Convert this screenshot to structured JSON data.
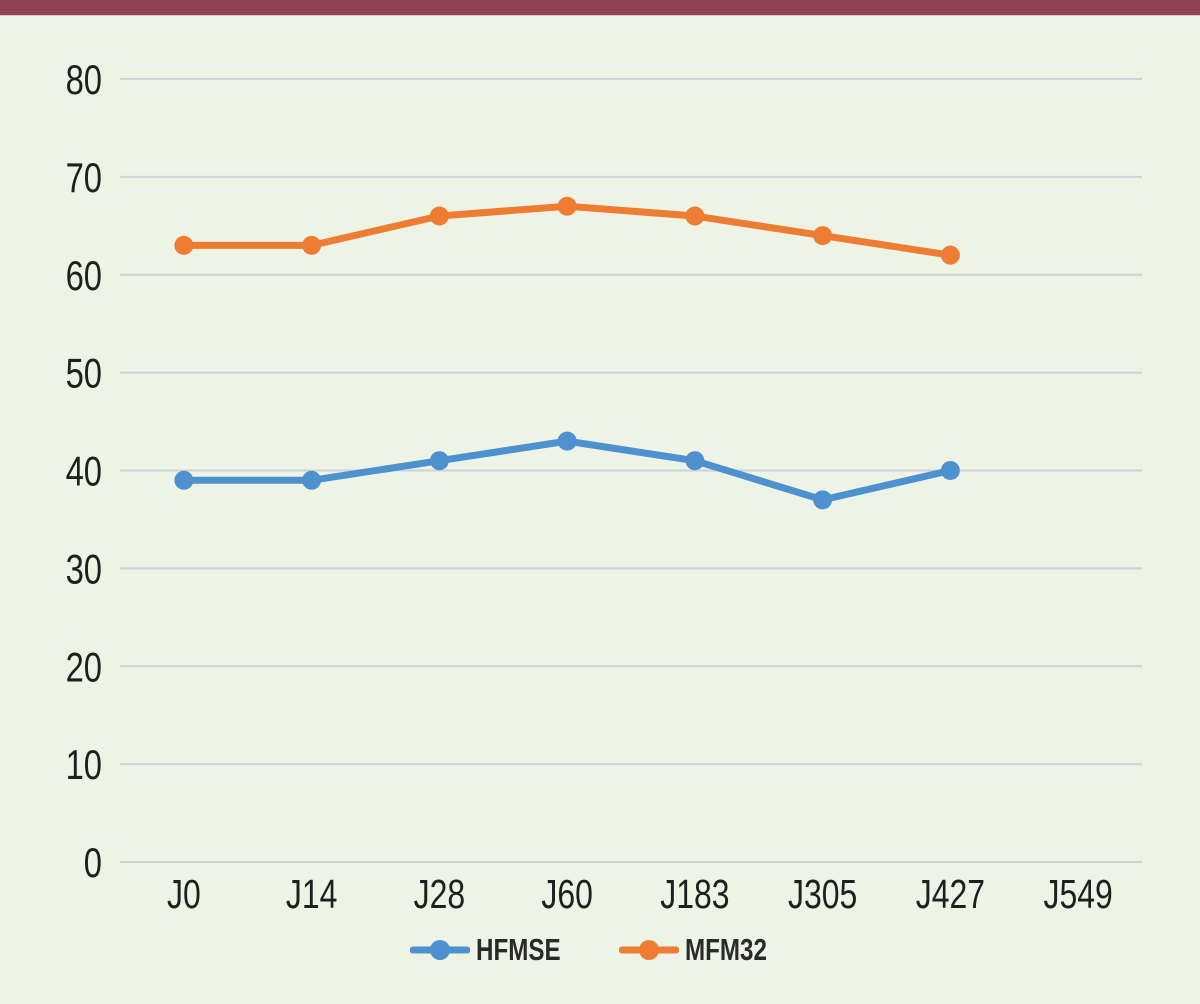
{
  "page": {
    "accent_bar_color": "#8d4355",
    "background_color": "#edf3e5"
  },
  "chart_data": {
    "type": "line",
    "title": "",
    "xlabel": "",
    "ylabel": "",
    "categories": [
      "J0",
      "J14",
      "J28",
      "J60",
      "J183",
      "J305",
      "J427",
      "J549"
    ],
    "series": [
      {
        "name": "HFMSE",
        "color": "#4d92cf",
        "values": [
          39,
          39,
          41,
          43,
          41,
          37,
          40,
          null
        ]
      },
      {
        "name": "MFM32",
        "color": "#ee7d33",
        "values": [
          63,
          63,
          66,
          67,
          66,
          64,
          62,
          null
        ]
      }
    ],
    "yticks": [
      0,
      10,
      20,
      30,
      40,
      50,
      60,
      70,
      80
    ],
    "ylim": [
      0,
      80
    ],
    "grid": true,
    "gridline_color": "#cfd2d8",
    "text_color": "#1f1f1f",
    "legend_position": "bottom",
    "marker": "circle"
  }
}
